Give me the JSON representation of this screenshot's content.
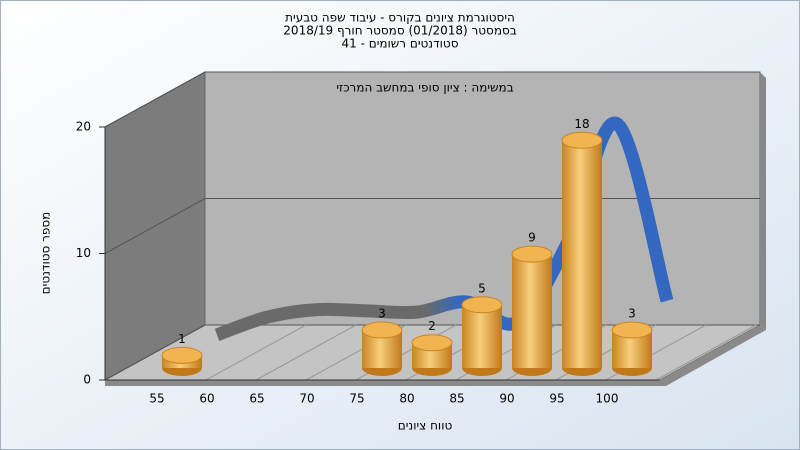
{
  "chart_data": {
    "type": "bar",
    "title": [
      "היסטוגרמת ציונים בקורס - עיבוד שפה טבעית",
      "בסמסטר  (01/2018)  סמסטר חורף 2018/19",
      "סטודנטים רשומים - 41"
    ],
    "subtitle": "במשימה : ציון סופי במחשב המרכזי",
    "x_label": "טווח ציונים",
    "y_label": "מספר סטודנטים",
    "categories": [
      "55",
      "60",
      "65",
      "70",
      "75",
      "80",
      "85",
      "90",
      "95",
      "100"
    ],
    "series": [
      {
        "color": "#e8a33c",
        "values": [
          1,
          0,
          0,
          0,
          3,
          2,
          5,
          9,
          18,
          3
        ]
      },
      {
        "type": "line",
        "color": "#3468c0",
        "values": [
          0.8,
          2.2,
          2.8,
          2.7,
          2.6,
          3.4,
          1.8,
          8,
          17.5,
          3.5
        ]
      }
    ],
    "ylim": [
      0,
      20
    ],
    "yticks": [
      0,
      10,
      20
    ],
    "grid": true
  }
}
